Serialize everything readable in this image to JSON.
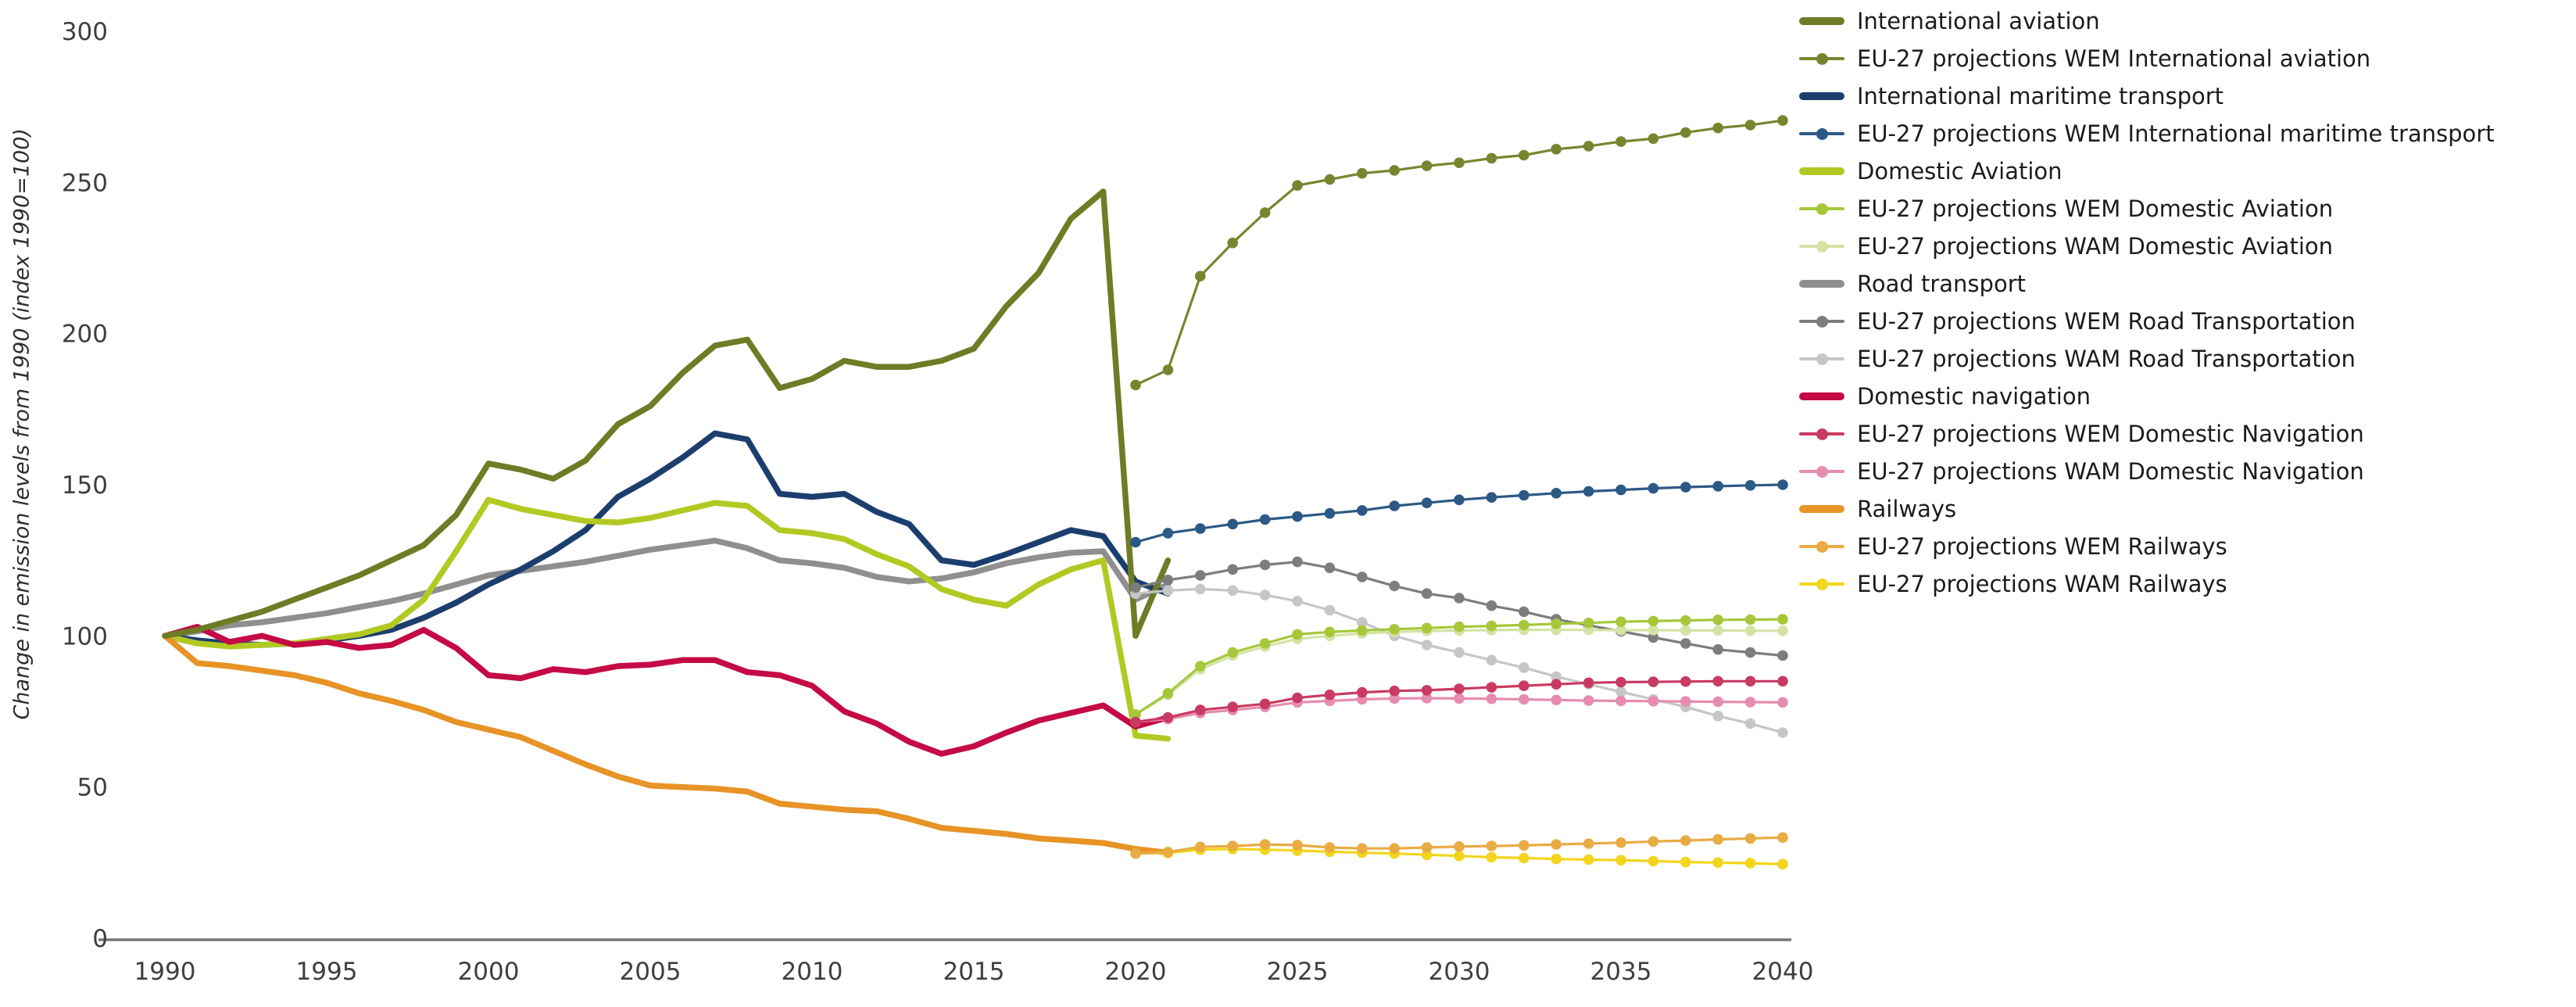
{
  "chart_data": {
    "type": "line",
    "title": "",
    "xlabel": "",
    "ylabel": "Change in emission levels from 1990 (index 1990=100)",
    "xlim": [
      1990,
      2040
    ],
    "ylim": [
      0,
      300
    ],
    "x_ticks": [
      1990,
      1995,
      2000,
      2005,
      2010,
      2015,
      2020,
      2025,
      2030,
      2035,
      2040
    ],
    "y_ticks": [
      300,
      250,
      200,
      150,
      100,
      50,
      0
    ],
    "grid": false,
    "legend_position": "right",
    "axis_color": "#777777",
    "series": [
      {
        "name": "International aviation",
        "color": "#6e7c25",
        "style": "history",
        "start_year": 1990,
        "values": [
          100,
          102,
          105,
          108,
          112,
          116,
          120,
          125,
          130,
          140,
          157,
          155,
          152,
          158,
          170,
          176,
          187,
          196,
          198,
          182,
          185,
          191,
          189,
          189,
          191,
          195,
          209,
          220,
          238,
          247,
          100,
          125
        ]
      },
      {
        "name": "EU-27 projections WEM International aviation",
        "color": "#76862f",
        "style": "projection",
        "start_year": 2020,
        "values": [
          183,
          188,
          219,
          230,
          240,
          249,
          251,
          253,
          254,
          255.5,
          256.5,
          258,
          259,
          261,
          262,
          263.5,
          264.5,
          266.5,
          268,
          269,
          270.5
        ]
      },
      {
        "name": "International maritime transport",
        "color": "#1c3e6e",
        "style": "history",
        "start_year": 1990,
        "values": [
          100,
          98.5,
          97.5,
          97,
          97.5,
          98.5,
          100,
          102,
          106,
          111,
          117,
          122,
          128,
          135,
          146,
          152,
          159,
          167,
          165,
          147,
          146,
          147,
          141,
          137,
          125,
          123.5,
          127,
          131,
          135,
          133,
          118,
          114
        ]
      },
      {
        "name": "EU-27 projections WEM International maritime transport",
        "color": "#2c5985",
        "style": "projection",
        "start_year": 2020,
        "values": [
          131,
          134,
          135.5,
          137,
          138.5,
          139.5,
          140.5,
          141.5,
          143,
          144,
          145,
          145.8,
          146.5,
          147.2,
          147.8,
          148.3,
          148.8,
          149.2,
          149.5,
          149.8,
          150
        ]
      },
      {
        "name": "Domestic Aviation",
        "color": "#b3c923",
        "style": "history",
        "start_year": 1990,
        "values": [
          100,
          97.5,
          96.5,
          97,
          97.5,
          99,
          100.5,
          103.5,
          112,
          128,
          145,
          142,
          140,
          138,
          137.5,
          139,
          141.5,
          144,
          143,
          135,
          134,
          132,
          127,
          123,
          115.5,
          112,
          110,
          117,
          122,
          125,
          67,
          66
        ]
      },
      {
        "name": "EU-27 projections WEM Domestic Aviation",
        "color": "#a6c73a",
        "style": "projection",
        "start_year": 2020,
        "values": [
          74,
          81,
          90,
          94.5,
          97.5,
          100.5,
          101.3,
          101.8,
          102.2,
          102.6,
          103,
          103.3,
          103.6,
          104,
          104.3,
          104.7,
          104.9,
          105.1,
          105.3,
          105.4,
          105.5
        ]
      },
      {
        "name": "EU-27 projections WAM Domestic Aviation",
        "color": "#d4e3a4",
        "style": "projection",
        "start_year": 2020,
        "values": [
          74,
          80.5,
          89,
          93.5,
          96.5,
          99,
          100,
          100.8,
          101.3,
          101.6,
          101.8,
          101.9,
          102,
          102,
          102,
          101.9,
          101.9,
          101.8,
          101.8,
          101.7,
          101.7
        ]
      },
      {
        "name": "Road transport",
        "color": "#8f8f8f",
        "style": "history",
        "start_year": 1990,
        "values": [
          100,
          101.5,
          103.5,
          104.5,
          106,
          107.5,
          109.5,
          111.5,
          114,
          117,
          120,
          121.5,
          123,
          124.5,
          126.5,
          128.5,
          130,
          131.5,
          129,
          125,
          124,
          122.5,
          119.5,
          118,
          119,
          121,
          124,
          126,
          127.5,
          128,
          112,
          117
        ]
      },
      {
        "name": "EU-27 projections WEM Road Transportation",
        "color": "#7d7d7d",
        "style": "projection",
        "start_year": 2020,
        "values": [
          116,
          118.5,
          120,
          122,
          123.5,
          124.5,
          122.5,
          119.5,
          116.5,
          114,
          112.5,
          110,
          108,
          105.5,
          103.5,
          101.5,
          99.5,
          97.5,
          95.5,
          94.5,
          93.5
        ]
      },
      {
        "name": "EU-27 projections WAM Road Transportation",
        "color": "#c6c6c6",
        "style": "projection",
        "start_year": 2020,
        "values": [
          114,
          115,
          115.5,
          115,
          113.5,
          111.5,
          108.5,
          104.5,
          100,
          97,
          94.5,
          92,
          89.5,
          86.5,
          84,
          81.5,
          79,
          76.5,
          73.5,
          71,
          68
        ]
      },
      {
        "name": "Domestic navigation",
        "color": "#c40b45",
        "style": "history",
        "start_year": 1990,
        "values": [
          100,
          103,
          98,
          100,
          97,
          98,
          96,
          97,
          102,
          96,
          87,
          86,
          89,
          88,
          90,
          90.5,
          92,
          92,
          88,
          87,
          83.5,
          75,
          71,
          65,
          61,
          63.5,
          68,
          72,
          74.5,
          77,
          70,
          73
        ]
      },
      {
        "name": "EU-27 projections WEM Domestic Navigation",
        "color": "#c93a62",
        "style": "projection",
        "start_year": 2020,
        "values": [
          71.5,
          73,
          75.5,
          76.5,
          77.5,
          79.5,
          80.5,
          81.3,
          81.8,
          82,
          82.5,
          83,
          83.5,
          84,
          84.5,
          84.7,
          84.8,
          84.9,
          85,
          85,
          85
        ]
      },
      {
        "name": "EU-27 projections WAM Domestic Navigation",
        "color": "#e68cb0",
        "style": "projection",
        "start_year": 2020,
        "values": [
          71.5,
          72.5,
          74.5,
          75.5,
          76.5,
          78,
          78.5,
          79,
          79.3,
          79.4,
          79.3,
          79.2,
          79,
          78.8,
          78.6,
          78.5,
          78.4,
          78.3,
          78.2,
          78.1,
          78
        ]
      },
      {
        "name": "Railways",
        "color": "#e79326",
        "style": "history",
        "start_year": 1990,
        "values": [
          100,
          91,
          90,
          88.5,
          87,
          84.5,
          81,
          78.5,
          75.5,
          71.5,
          69,
          66.5,
          62,
          57.5,
          53.5,
          50.5,
          50,
          49.5,
          48.5,
          44.5,
          43.5,
          42.5,
          42,
          39.5,
          36.5,
          35.5,
          34.5,
          33,
          32.3,
          31.5,
          29.5,
          28.3
        ]
      },
      {
        "name": "EU-27 projections WEM Railways",
        "color": "#e9ab43",
        "style": "projection",
        "start_year": 2020,
        "values": [
          28,
          28.5,
          30.2,
          30.5,
          31,
          30.8,
          30,
          29.7,
          29.7,
          30,
          30.3,
          30.5,
          30.7,
          31,
          31.3,
          31.6,
          32,
          32.3,
          32.7,
          33,
          33.3
        ]
      },
      {
        "name": "EU-27 projections WAM Railways",
        "color": "#f2d51c",
        "style": "projection",
        "start_year": 2020,
        "values": [
          28,
          28.2,
          29.3,
          29.5,
          29.3,
          29,
          28.6,
          28.3,
          28,
          27.6,
          27.2,
          26.8,
          26.5,
          26.2,
          26,
          25.8,
          25.5,
          25.2,
          25,
          24.8,
          24.5
        ]
      }
    ]
  }
}
